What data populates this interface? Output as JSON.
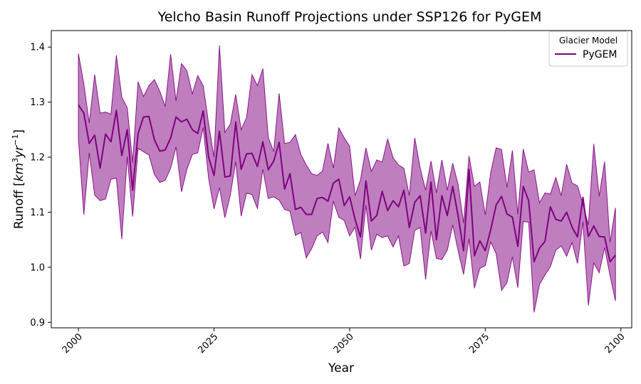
{
  "chart_data": {
    "type": "area",
    "title": "Yelcho Basin Runoff Projections under SSP126 for PyGEM",
    "xlabel": "Year",
    "ylabel": "Runoff [km³yr⁻¹]",
    "ylabel_parts": {
      "base": "Runoff [",
      "var1": "km",
      "sup1": "3",
      "var2": "yr",
      "sup2": "−1",
      "close": "]"
    },
    "xlim": [
      1995,
      2102
    ],
    "ylim": [
      0.89,
      1.43
    ],
    "xticks": [
      2000,
      2025,
      2050,
      2075,
      2100
    ],
    "yticks": [
      0.9,
      1.0,
      1.1,
      1.2,
      1.3,
      1.4
    ],
    "grid": false,
    "legend": {
      "title": "Glacier Model",
      "position": "top-right",
      "entries": [
        "PyGEM"
      ]
    },
    "colors": {
      "line": "#800080",
      "band": "#800080",
      "band_opacity": 0.5
    },
    "series": [
      {
        "name": "PyGEM",
        "x": [
          2000,
          2001,
          2002,
          2003,
          2004,
          2005,
          2006,
          2007,
          2008,
          2009,
          2010,
          2011,
          2012,
          2013,
          2014,
          2015,
          2016,
          2017,
          2018,
          2019,
          2020,
          2021,
          2022,
          2023,
          2024,
          2025,
          2026,
          2027,
          2028,
          2029,
          2030,
          2031,
          2032,
          2033,
          2034,
          2035,
          2036,
          2037,
          2038,
          2039,
          2040,
          2041,
          2042,
          2043,
          2044,
          2045,
          2046,
          2047,
          2048,
          2049,
          2050,
          2051,
          2052,
          2053,
          2054,
          2055,
          2056,
          2057,
          2058,
          2059,
          2060,
          2061,
          2062,
          2063,
          2064,
          2065,
          2066,
          2067,
          2068,
          2069,
          2070,
          2071,
          2072,
          2073,
          2074,
          2075,
          2076,
          2077,
          2078,
          2079,
          2080,
          2081,
          2082,
          2083,
          2084,
          2085,
          2086,
          2087,
          2088,
          2089,
          2090,
          2091,
          2092,
          2093,
          2094,
          2095,
          2096,
          2097,
          2098,
          2099
        ],
        "mean": [
          1.295,
          1.28,
          1.225,
          1.24,
          1.18,
          1.242,
          1.228,
          1.285,
          1.203,
          1.25,
          1.14,
          1.243,
          1.273,
          1.274,
          1.232,
          1.211,
          1.213,
          1.235,
          1.273,
          1.264,
          1.269,
          1.25,
          1.243,
          1.284,
          1.2,
          1.167,
          1.247,
          1.164,
          1.166,
          1.264,
          1.178,
          1.206,
          1.207,
          1.183,
          1.228,
          1.177,
          1.193,
          1.227,
          1.142,
          1.17,
          1.105,
          1.109,
          1.096,
          1.096,
          1.125,
          1.127,
          1.12,
          1.153,
          1.16,
          1.112,
          1.128,
          1.087,
          1.055,
          1.157,
          1.084,
          1.094,
          1.138,
          1.103,
          1.121,
          1.11,
          1.14,
          1.072,
          1.118,
          1.13,
          1.062,
          1.155,
          1.05,
          1.13,
          1.094,
          1.147,
          1.093,
          1.03,
          1.178,
          1.021,
          1.048,
          1.03,
          1.068,
          1.113,
          1.129,
          1.097,
          1.091,
          1.038,
          1.147,
          1.121,
          1.01,
          1.035,
          1.047,
          1.11,
          1.087,
          1.084,
          1.1,
          1.073,
          1.055,
          1.127,
          1.056,
          1.075,
          1.056,
          1.055,
          1.01,
          1.022
        ],
        "upper": [
          1.388,
          1.333,
          1.262,
          1.35,
          1.28,
          1.282,
          1.278,
          1.385,
          1.309,
          1.29,
          1.19,
          1.337,
          1.31,
          1.33,
          1.341,
          1.32,
          1.292,
          1.387,
          1.302,
          1.37,
          1.357,
          1.315,
          1.348,
          1.33,
          1.261,
          1.2,
          1.403,
          1.245,
          1.26,
          1.314,
          1.25,
          1.272,
          1.35,
          1.33,
          1.361,
          1.236,
          1.21,
          1.316,
          1.225,
          1.227,
          1.241,
          1.205,
          1.186,
          1.17,
          1.167,
          1.175,
          1.225,
          1.18,
          1.253,
          1.235,
          1.22,
          1.13,
          1.159,
          1.217,
          1.174,
          1.195,
          1.191,
          1.233,
          1.199,
          1.186,
          1.18,
          1.13,
          1.235,
          1.18,
          1.14,
          1.193,
          1.135,
          1.195,
          1.14,
          1.189,
          1.15,
          1.08,
          1.202,
          1.147,
          1.155,
          1.095,
          1.172,
          1.217,
          1.214,
          1.145,
          1.212,
          1.096,
          1.215,
          1.173,
          1.177,
          1.117,
          1.135,
          1.133,
          1.163,
          1.13,
          1.187,
          1.153,
          1.148,
          1.115,
          1.077,
          1.224,
          1.129,
          1.192,
          1.045,
          1.108
        ],
        "lower": [
          1.233,
          1.096,
          1.208,
          1.131,
          1.121,
          1.124,
          1.16,
          1.162,
          1.051,
          1.201,
          1.092,
          1.216,
          1.21,
          1.204,
          1.169,
          1.154,
          1.158,
          1.18,
          1.219,
          1.137,
          1.178,
          1.205,
          1.208,
          1.254,
          1.162,
          1.106,
          1.145,
          1.09,
          1.131,
          1.192,
          1.093,
          1.135,
          1.132,
          1.107,
          1.178,
          1.125,
          1.128,
          1.122,
          1.105,
          1.102,
          1.058,
          1.063,
          1.017,
          1.034,
          1.057,
          1.064,
          1.045,
          1.12,
          1.091,
          1.085,
          1.057,
          1.073,
          1.015,
          1.113,
          1.031,
          1.06,
          1.054,
          1.057,
          1.037,
          1.057,
          1.002,
          1.007,
          1.067,
          1.072,
          0.978,
          1.066,
          1.016,
          1.014,
          1.031,
          1.077,
          1.03,
          0.987,
          1.052,
          0.962,
          0.998,
          1.003,
          1.046,
          1.025,
          0.958,
          0.972,
          1.019,
          0.963,
          1.083,
          1.082,
          0.918,
          0.969,
          0.986,
          1.001,
          1.031,
          1.039,
          1.02,
          1.045,
          1.007,
          1.083,
          0.931,
          1.008,
          0.99,
          1.036,
          0.985,
          0.939
        ]
      }
    ]
  }
}
